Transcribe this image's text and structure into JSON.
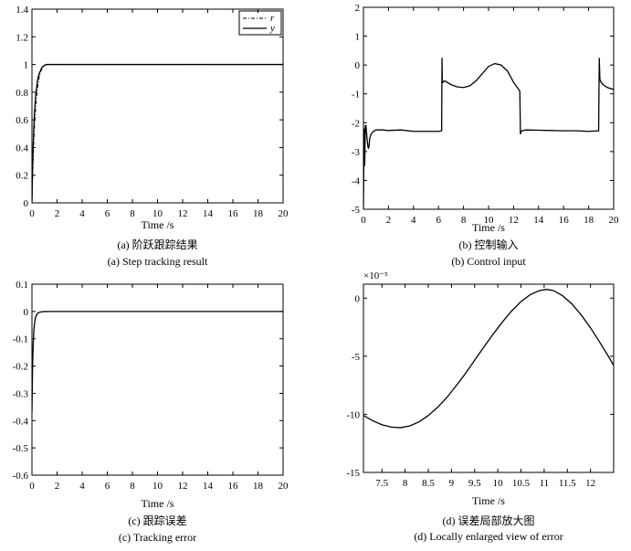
{
  "figure": {
    "panels": [
      {
        "id": "a",
        "caption_cn": "(a) 阶跃跟踪结果",
        "caption_en": "(a) Step tracking result",
        "legend": [
          "r",
          "y"
        ]
      },
      {
        "id": "b",
        "caption_cn": "(b) 控制输入",
        "caption_en": "(b) Control input"
      },
      {
        "id": "c",
        "caption_cn": "(c) 跟踪误差",
        "caption_en": "(c) Tracking error"
      },
      {
        "id": "d",
        "caption_cn": "(d) 误差局部放大图",
        "caption_en": "(d) Locally enlarged view of error",
        "exponent_label": "×10⁻⁵"
      }
    ]
  },
  "chart_data": [
    {
      "type": "line",
      "xlabel": "Time /s",
      "ylabel": "",
      "xlim": [
        0,
        20
      ],
      "ylim": [
        0,
        1.4
      ],
      "xticks": [
        0,
        2,
        4,
        6,
        8,
        10,
        12,
        14,
        16,
        18,
        20
      ],
      "yticks": [
        0,
        0.2,
        0.4,
        0.6,
        0.8,
        1,
        1.2,
        1.4
      ],
      "legend_position": "top-right",
      "series": [
        {
          "name": "r",
          "style": "dashdot",
          "x": [
            0,
            0.05,
            0.1,
            0.15,
            0.2,
            0.3,
            0.4,
            0.5,
            0.6,
            0.7,
            0.8,
            1.0,
            1.2,
            1.5,
            2,
            20
          ],
          "y": [
            0,
            0.18,
            0.33,
            0.45,
            0.55,
            0.7,
            0.8,
            0.87,
            0.92,
            0.95,
            0.97,
            0.99,
            1.0,
            1.0,
            1.0,
            1.0
          ]
        },
        {
          "name": "y",
          "style": "solid",
          "x": [
            0,
            0.05,
            0.1,
            0.15,
            0.2,
            0.3,
            0.4,
            0.5,
            0.6,
            0.7,
            0.8,
            1.0,
            1.2,
            1.5,
            2,
            20
          ],
          "y": [
            0,
            0.25,
            0.42,
            0.55,
            0.65,
            0.78,
            0.86,
            0.91,
            0.94,
            0.96,
            0.98,
            0.995,
            1.0,
            1.0,
            1.0,
            1.0
          ]
        }
      ]
    },
    {
      "type": "line",
      "xlabel": "Time /s",
      "ylabel": "",
      "xlim": [
        0,
        20
      ],
      "ylim": [
        -5,
        2
      ],
      "xticks": [
        0,
        2,
        4,
        6,
        8,
        10,
        12,
        14,
        16,
        18,
        20
      ],
      "yticks": [
        -5,
        -4,
        -3,
        -2,
        -1,
        0,
        1,
        2
      ],
      "series": [
        {
          "name": "",
          "style": "solid",
          "x": [
            0,
            0.05,
            0.1,
            0.15,
            0.2,
            0.3,
            0.35,
            0.4,
            0.45,
            0.5,
            0.6,
            0.8,
            1.0,
            1.5,
            2,
            3,
            4,
            5,
            6,
            6.25,
            6.28,
            6.3,
            6.35,
            6.5,
            7,
            7.5,
            8,
            8.5,
            9,
            9.5,
            10,
            10.5,
            11,
            11.5,
            12,
            12.5,
            12.55,
            12.6,
            12.7,
            13,
            14,
            15,
            16,
            17,
            18,
            18.8,
            18.85,
            18.9,
            19.0,
            19.2,
            19.5,
            20
          ],
          "y": [
            -4.95,
            -2.2,
            -3.5,
            -2.1,
            -2.1,
            -2.6,
            -2.8,
            -2.9,
            -2.8,
            -2.55,
            -2.4,
            -2.3,
            -2.25,
            -2.25,
            -2.27,
            -2.25,
            -2.3,
            -2.3,
            -2.3,
            -2.28,
            0.25,
            -0.5,
            -0.6,
            -0.55,
            -0.68,
            -0.76,
            -0.78,
            -0.72,
            -0.55,
            -0.3,
            -0.05,
            0.05,
            0.0,
            -0.2,
            -0.6,
            -0.9,
            -2.4,
            -2.3,
            -2.28,
            -2.25,
            -2.26,
            -2.27,
            -2.28,
            -2.28,
            -2.3,
            -2.28,
            0.25,
            -0.5,
            -0.6,
            -0.7,
            -0.78,
            -0.85
          ]
        }
      ]
    },
    {
      "type": "line",
      "xlabel": "Time /s",
      "ylabel": "",
      "xlim": [
        0,
        20
      ],
      "ylim": [
        -0.6,
        0.1
      ],
      "xticks": [
        0,
        2,
        4,
        6,
        8,
        10,
        12,
        14,
        16,
        18,
        20
      ],
      "yticks": [
        -0.6,
        -0.5,
        -0.4,
        -0.3,
        -0.2,
        -0.1,
        0,
        0.1
      ],
      "series": [
        {
          "name": "",
          "style": "solid",
          "x": [
            0,
            0.05,
            0.1,
            0.15,
            0.2,
            0.25,
            0.3,
            0.4,
            0.5,
            0.6,
            0.8,
            1.0,
            1.5,
            2,
            20
          ],
          "y": [
            -0.37,
            -0.2,
            -0.12,
            -0.07,
            -0.045,
            -0.03,
            -0.02,
            -0.01,
            -0.005,
            -0.003,
            -0.001,
            -0.0003,
            0,
            0,
            0
          ]
        }
      ]
    },
    {
      "type": "line",
      "xlabel": "Time /s",
      "ylabel": "",
      "xlim": [
        7.1,
        12.5
      ],
      "ylim": [
        -15,
        1.2
      ],
      "y_multiplier": "1e-5",
      "xticks": [
        7.5,
        8,
        8.5,
        9,
        9.5,
        10,
        10.5,
        11,
        11.5,
        12
      ],
      "xtick_labels": [
        "7.5",
        "8",
        "8.5",
        "9",
        "9.5",
        "10",
        "10.5",
        "11",
        "11.5",
        "12"
      ],
      "yticks": [
        -15,
        -10,
        -5,
        0
      ],
      "series": [
        {
          "name": "",
          "style": "solid",
          "x": [
            7.1,
            7.3,
            7.5,
            7.7,
            7.9,
            8.1,
            8.3,
            8.5,
            8.7,
            8.9,
            9.1,
            9.3,
            9.5,
            9.7,
            9.9,
            10.1,
            10.3,
            10.5,
            10.7,
            10.9,
            11.05,
            11.2,
            11.4,
            11.6,
            11.8,
            12.0,
            12.2,
            12.4,
            12.5
          ],
          "y": [
            -10.1,
            -10.55,
            -10.9,
            -11.1,
            -11.15,
            -11.0,
            -10.65,
            -10.1,
            -9.4,
            -8.55,
            -7.55,
            -6.5,
            -5.35,
            -4.2,
            -3.1,
            -2.05,
            -1.1,
            -0.3,
            0.3,
            0.65,
            0.75,
            0.65,
            0.2,
            -0.5,
            -1.45,
            -2.55,
            -3.8,
            -5.1,
            -5.8
          ]
        }
      ]
    }
  ]
}
